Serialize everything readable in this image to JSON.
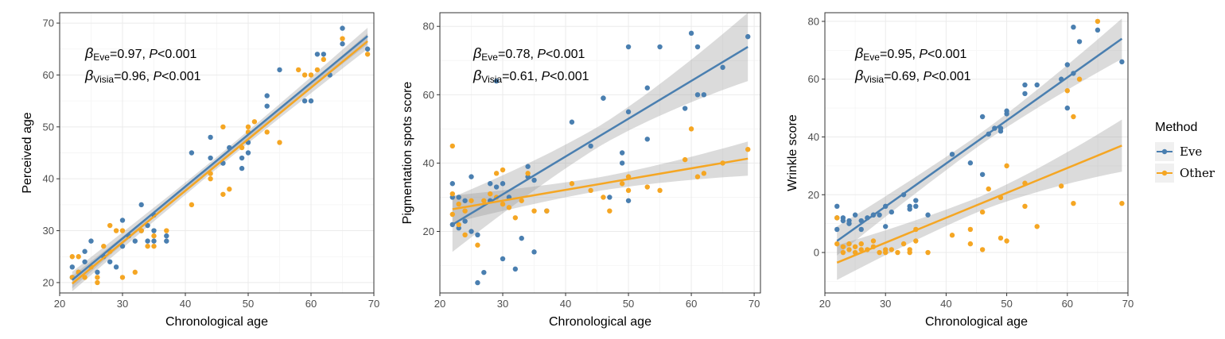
{
  "legend": {
    "title": "Method",
    "entries": [
      {
        "label": "Eve",
        "color": "#4a7fb0"
      },
      {
        "label": "Other",
        "color": "#f5a623"
      }
    ]
  },
  "chart_data": [
    {
      "type": "scatter",
      "xlabel": "Chronological age",
      "ylabel": "Perceived age",
      "xlim": [
        20,
        70
      ],
      "ylim": [
        18,
        72
      ],
      "xticks": [
        20,
        30,
        40,
        50,
        60,
        70
      ],
      "yticks": [
        20,
        30,
        40,
        50,
        60,
        70
      ],
      "annotations": [
        {
          "label": "β",
          "sub": "Eve",
          "text": "=0.97, ",
          "p": "P",
          "rest": "<0.001"
        },
        {
          "label": "β",
          "sub": "Visia",
          "text": "=0.96, ",
          "p": "P",
          "rest": "<0.001"
        }
      ],
      "series": [
        {
          "name": "Eve",
          "color": "#4a7fb0",
          "fit": {
            "x": [
              22,
              69
            ],
            "y": [
              20.5,
              67.5
            ],
            "band_start": 1.6,
            "band_mid": 0.7,
            "band_end": 1.6
          },
          "x": [
            22,
            22,
            23,
            24,
            24,
            25,
            26,
            27,
            28,
            29,
            30,
            30,
            31,
            32,
            33,
            33,
            34,
            34,
            35,
            35,
            35,
            37,
            37,
            41,
            44,
            44,
            46,
            47,
            49,
            49,
            50,
            50,
            53,
            53,
            55,
            59,
            60,
            61,
            62,
            63,
            65,
            65,
            69
          ],
          "y": [
            21,
            23,
            22,
            24,
            26,
            28,
            22,
            25,
            24,
            23,
            27,
            32,
            29,
            28,
            35,
            30,
            28,
            31,
            28,
            30,
            33,
            28,
            29,
            45,
            48,
            44,
            43,
            46,
            44,
            42,
            45,
            47,
            54,
            56,
            61,
            55,
            55,
            64,
            64,
            60,
            69,
            66,
            65
          ]
        },
        {
          "name": "Other",
          "color": "#f5a623",
          "fit": {
            "x": [
              22,
              69
            ],
            "y": [
              19.8,
              66.5
            ],
            "band_start": 1.5,
            "band_mid": 0.7,
            "band_end": 1.5
          },
          "x": [
            22,
            22,
            23,
            23,
            24,
            25,
            26,
            26,
            27,
            28,
            28,
            29,
            30,
            30,
            32,
            33,
            34,
            35,
            35,
            37,
            41,
            44,
            44,
            46,
            46,
            47,
            49,
            50,
            50,
            51,
            53,
            55,
            58,
            59,
            60,
            61,
            62,
            65,
            69
          ],
          "y": [
            21,
            25,
            25,
            22,
            21,
            23,
            20,
            21,
            27,
            26,
            31,
            30,
            30,
            21,
            22,
            30,
            27,
            27,
            29,
            30,
            35,
            41,
            40,
            37,
            50,
            38,
            46,
            50,
            49,
            51,
            49,
            47,
            61,
            60,
            60,
            61,
            63,
            67,
            64
          ]
        }
      ]
    },
    {
      "type": "scatter",
      "xlabel": "Chronological age",
      "ylabel": "Pigmentation spots score",
      "xlim": [
        20,
        71
      ],
      "ylim": [
        2,
        84
      ],
      "xticks": [
        20,
        30,
        40,
        50,
        60,
        70
      ],
      "yticks": [
        20,
        40,
        60,
        80
      ],
      "annotations": [
        {
          "label": "β",
          "sub": "Eve",
          "text": "=0.78, ",
          "p": "P",
          "rest": "<0.001"
        },
        {
          "label": "β",
          "sub": "Visia",
          "text": "=0.61, ",
          "p": "P",
          "rest": "<0.001"
        }
      ],
      "series": [
        {
          "name": "Eve",
          "color": "#4a7fb0",
          "fit": {
            "x": [
              22,
              69
            ],
            "y": [
              22,
              74
            ],
            "band_start": 8,
            "band_mid": 3,
            "band_end": 10
          },
          "x": [
            22,
            22,
            22,
            23,
            23,
            24,
            24,
            25,
            25,
            26,
            26,
            27,
            28,
            28,
            29,
            29,
            30,
            30,
            31,
            32,
            33,
            34,
            34,
            35,
            35,
            37,
            41,
            44,
            46,
            46,
            47,
            49,
            49,
            50,
            50,
            50,
            53,
            53,
            55,
            59,
            60,
            61,
            61,
            62,
            65,
            69
          ],
          "y": [
            34,
            30,
            22,
            30,
            21,
            29,
            23,
            36,
            20,
            19,
            5,
            8,
            34,
            29,
            33,
            64,
            12,
            34,
            30,
            9,
            18,
            39,
            36,
            14,
            35,
            26,
            52,
            45,
            59,
            59,
            30,
            43,
            40,
            74,
            55,
            29,
            62,
            47,
            74,
            56,
            78,
            74,
            60,
            60,
            68,
            77
          ]
        },
        {
          "name": "Other",
          "color": "#f5a623",
          "fit": {
            "x": [
              22,
              69
            ],
            "y": [
              26.5,
              41.3
            ],
            "band_start": 4,
            "band_mid": 2,
            "band_end": 5
          },
          "x": [
            22,
            22,
            22,
            23,
            23,
            24,
            24,
            25,
            26,
            27,
            28,
            29,
            29,
            30,
            30,
            31,
            32,
            33,
            34,
            35,
            37,
            41,
            44,
            46,
            47,
            49,
            50,
            50,
            53,
            55,
            59,
            60,
            61,
            62,
            65,
            69
          ],
          "y": [
            45,
            31,
            25,
            28,
            22,
            19,
            26,
            29,
            16,
            29,
            31,
            37,
            30,
            38,
            28,
            27,
            24,
            29,
            37,
            26,
            26,
            34,
            32,
            30,
            26,
            34,
            36,
            32,
            33,
            32,
            41,
            50,
            36,
            37,
            40,
            44
          ]
        }
      ]
    },
    {
      "type": "scatter",
      "xlabel": "Chronological age",
      "ylabel": "Wrinkle score",
      "xlim": [
        20,
        70
      ],
      "ylim": [
        -14,
        83
      ],
      "xticks": [
        20,
        30,
        40,
        50,
        60,
        70
      ],
      "yticks": [
        0,
        20,
        40,
        60,
        80
      ],
      "annotations": [
        {
          "label": "β",
          "sub": "Eve",
          "text": "=0.95, ",
          "p": "P",
          "rest": "<0.001"
        },
        {
          "label": "β",
          "sub": "Visia",
          "text": "=0.69, ",
          "p": "P",
          "rest": "<0.001"
        }
      ],
      "series": [
        {
          "name": "Eve",
          "color": "#4a7fb0",
          "fit": {
            "x": [
              22,
              69
            ],
            "y": [
              4,
              74
            ],
            "band_start": 5,
            "band_mid": 2,
            "band_end": 7
          },
          "x": [
            22,
            22,
            22,
            23,
            23,
            24,
            24,
            25,
            26,
            26,
            27,
            28,
            28,
            29,
            30,
            30,
            31,
            33,
            34,
            34,
            35,
            35,
            37,
            41,
            44,
            46,
            46,
            47,
            48,
            49,
            49,
            50,
            50,
            53,
            53,
            55,
            59,
            60,
            60,
            61,
            61,
            62,
            65,
            69
          ],
          "y": [
            16,
            12,
            8,
            11,
            12,
            11,
            10,
            13,
            8,
            11,
            12,
            13,
            13,
            13,
            16,
            9,
            14,
            20,
            16,
            15,
            16,
            18,
            13,
            34,
            31,
            47,
            27,
            41,
            43,
            42,
            43,
            48,
            49,
            58,
            55,
            58,
            60,
            65,
            50,
            78,
            62,
            73,
            77,
            66
          ]
        },
        {
          "name": "Other",
          "color": "#f5a623",
          "fit": {
            "x": [
              22,
              69
            ],
            "y": [
              -3.5,
              37
            ],
            "band_start": 6,
            "band_mid": 2.5,
            "band_end": 9
          },
          "x": [
            22,
            22,
            23,
            23,
            24,
            24,
            25,
            25,
            26,
            26,
            27,
            28,
            28,
            29,
            30,
            30,
            31,
            32,
            33,
            34,
            34,
            35,
            35,
            37,
            41,
            44,
            44,
            46,
            46,
            47,
            49,
            49,
            50,
            50,
            53,
            53,
            55,
            59,
            60,
            61,
            61,
            62,
            65,
            69
          ],
          "y": [
            3,
            12,
            0,
            2,
            1,
            3,
            2,
            0,
            1,
            3,
            1,
            2,
            4,
            0,
            1,
            0,
            1,
            0,
            3,
            1,
            0,
            8,
            4,
            0,
            6,
            3,
            8,
            1,
            14,
            22,
            5,
            19,
            4,
            30,
            16,
            24,
            9,
            23,
            56,
            47,
            17,
            60,
            80,
            17
          ]
        }
      ]
    }
  ]
}
